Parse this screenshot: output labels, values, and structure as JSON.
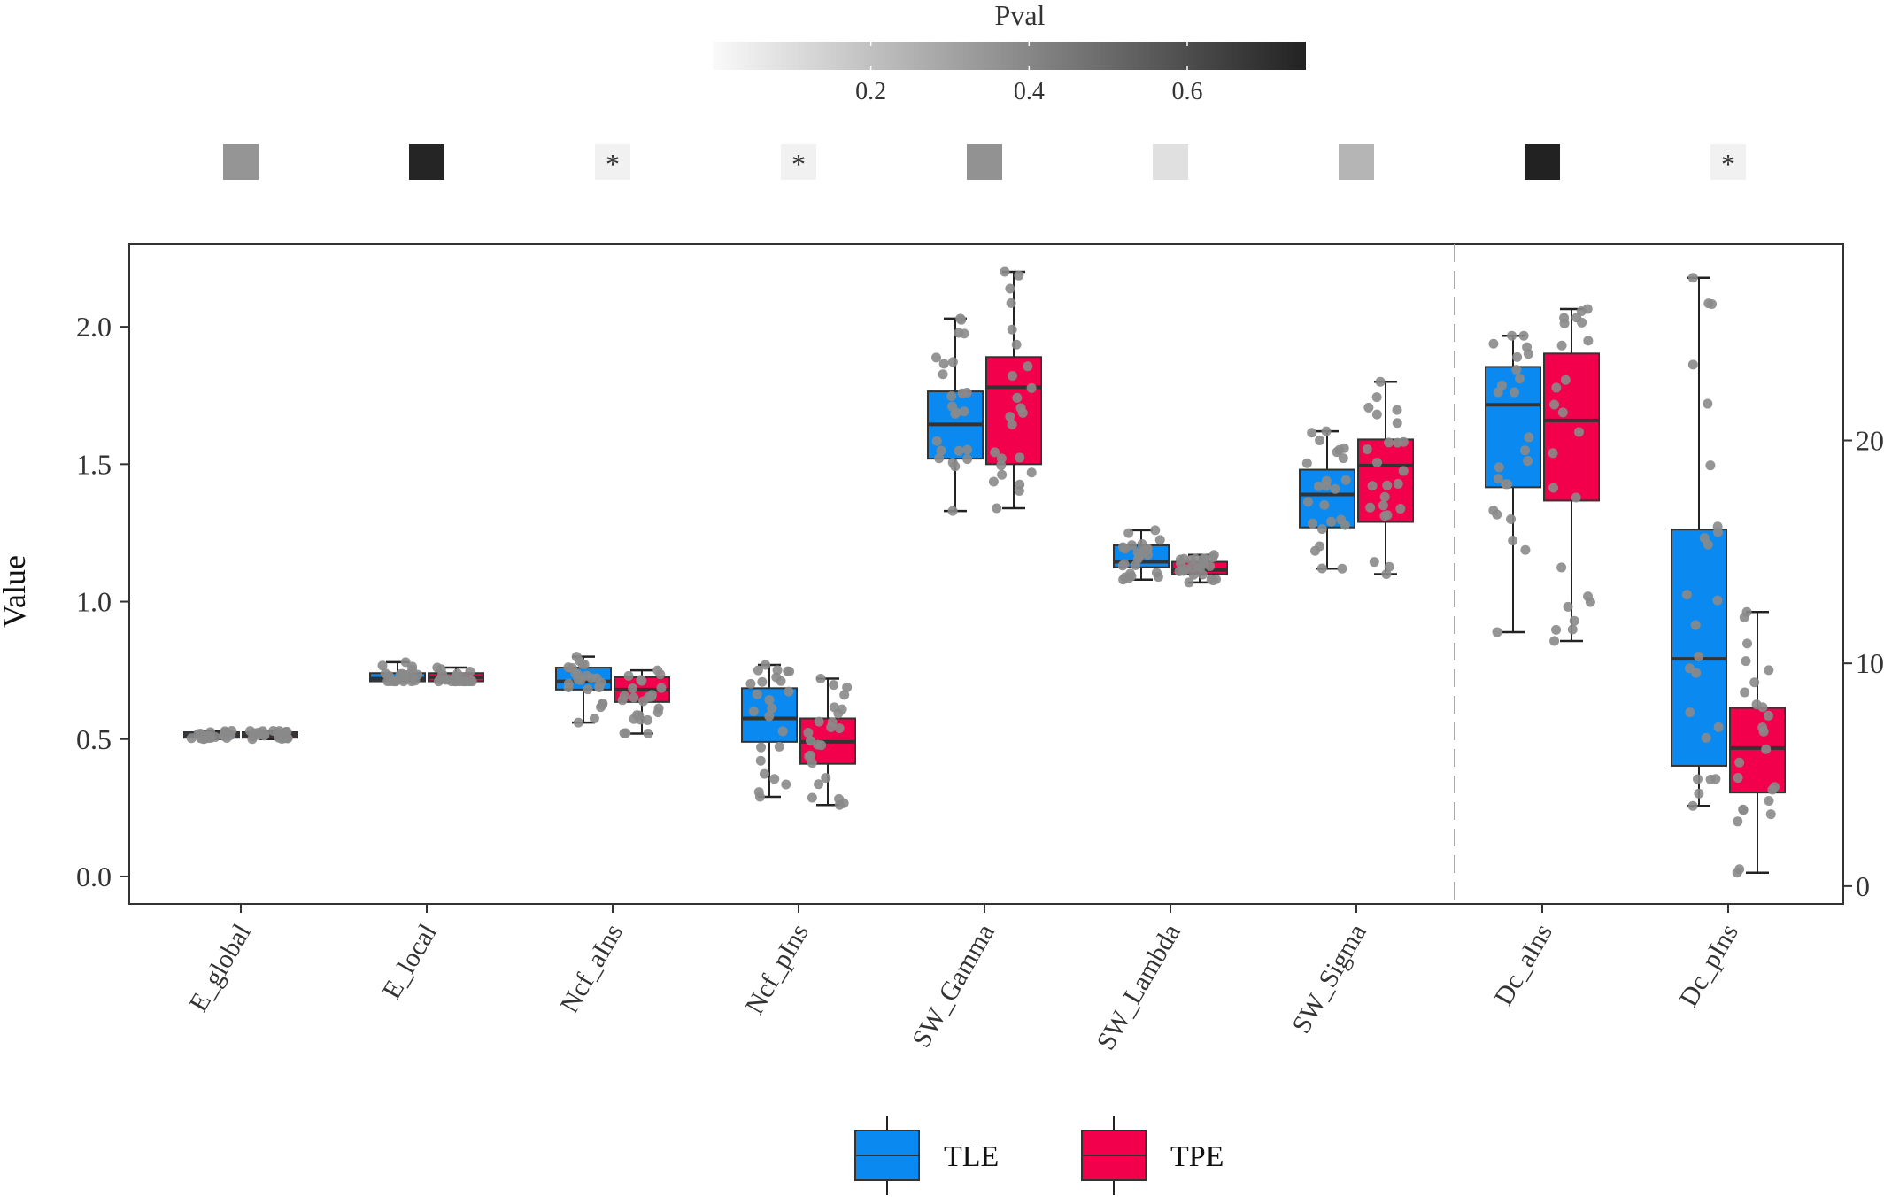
{
  "chart_data": {
    "type": "boxplot",
    "ylabel": "Value",
    "categories": [
      "E_global",
      "E_local",
      "Ncf_aIns",
      "Ncf_pIns",
      "SW_Gamma",
      "SW_Lambda",
      "SW_Sigma",
      "Dc_aIns",
      "Dc_pIns"
    ],
    "left_axis": {
      "ylim": [
        -0.1,
        2.3
      ],
      "ticks": [
        0.0,
        0.5,
        1.0,
        1.5,
        2.0
      ],
      "tick_labels": [
        "0.0",
        "0.5",
        "1.0",
        "1.5",
        "2.0"
      ],
      "applies_to": [
        "E_global",
        "E_local",
        "Ncf_aIns",
        "Ncf_pIns",
        "SW_Gamma",
        "SW_Lambda",
        "SW_Sigma"
      ]
    },
    "right_axis": {
      "ylim": [
        -0.8,
        28.8
      ],
      "ticks": [
        0,
        10,
        20
      ],
      "tick_labels": [
        "0",
        "10",
        "20"
      ],
      "applies_to": [
        "Dc_aIns",
        "Dc_pIns"
      ]
    },
    "legend": {
      "position": "bottom",
      "entries": [
        {
          "name": "TLE",
          "color": "#0a8af0"
        },
        {
          "name": "TPE",
          "color": "#f2004c"
        }
      ]
    },
    "colorbar": {
      "title": "Pval",
      "ticks": [
        0.2,
        0.4,
        0.6
      ],
      "tick_labels": [
        "0.2",
        "0.4",
        "0.6"
      ],
      "range": [
        0.0,
        0.75
      ],
      "color_low": "#fafafa",
      "color_high": "#222222"
    },
    "pvalues": [
      {
        "category": "E_global",
        "pval": 0.35,
        "star": ""
      },
      {
        "category": "E_local",
        "pval": 0.74,
        "star": ""
      },
      {
        "category": "Ncf_aIns",
        "pval": 0.03,
        "star": "*"
      },
      {
        "category": "Ncf_pIns",
        "pval": 0.03,
        "star": "*"
      },
      {
        "category": "SW_Gamma",
        "pval": 0.36,
        "star": ""
      },
      {
        "category": "SW_Lambda",
        "pval": 0.09,
        "star": ""
      },
      {
        "category": "SW_Sigma",
        "pval": 0.24,
        "star": ""
      },
      {
        "category": "Dc_aIns",
        "pval": 0.75,
        "star": ""
      },
      {
        "category": "Dc_pIns",
        "pval": 0.03,
        "star": "*"
      }
    ],
    "series": [
      {
        "name": "TLE",
        "boxes": [
          {
            "min": 0.5,
            "q1": 0.505,
            "median": 0.515,
            "q3": 0.525,
            "max": 0.53
          },
          {
            "min": 0.71,
            "q1": 0.71,
            "median": 0.72,
            "q3": 0.74,
            "max": 0.78
          },
          {
            "min": 0.56,
            "q1": 0.68,
            "median": 0.71,
            "q3": 0.76,
            "max": 0.8
          },
          {
            "min": 0.29,
            "q1": 0.49,
            "median": 0.575,
            "q3": 0.685,
            "max": 0.77
          },
          {
            "min": 1.33,
            "q1": 1.52,
            "median": 1.645,
            "q3": 1.765,
            "max": 2.03
          },
          {
            "min": 1.08,
            "q1": 1.125,
            "median": 1.145,
            "q3": 1.205,
            "max": 1.26
          },
          {
            "min": 1.12,
            "q1": 1.27,
            "median": 1.39,
            "q3": 1.48,
            "max": 1.62
          },
          {
            "min": 11.4,
            "q1": 17.9,
            "median": 21.6,
            "q3": 23.3,
            "max": 24.7
          },
          {
            "min": 3.6,
            "q1": 5.4,
            "median": 10.2,
            "q3": 16.0,
            "max": 27.3
          }
        ]
      },
      {
        "name": "TPE",
        "boxes": [
          {
            "min": 0.5,
            "q1": 0.505,
            "median": 0.515,
            "q3": 0.525,
            "max": 0.53
          },
          {
            "min": 0.71,
            "q1": 0.71,
            "median": 0.725,
            "q3": 0.74,
            "max": 0.76
          },
          {
            "min": 0.52,
            "q1": 0.635,
            "median": 0.68,
            "q3": 0.725,
            "max": 0.75
          },
          {
            "min": 0.26,
            "q1": 0.41,
            "median": 0.49,
            "q3": 0.575,
            "max": 0.72
          },
          {
            "min": 1.34,
            "q1": 1.5,
            "median": 1.78,
            "q3": 1.89,
            "max": 2.2
          },
          {
            "min": 1.07,
            "q1": 1.1,
            "median": 1.115,
            "q3": 1.145,
            "max": 1.17
          },
          {
            "min": 1.1,
            "q1": 1.29,
            "median": 1.495,
            "q3": 1.59,
            "max": 1.8
          },
          {
            "min": 11.0,
            "q1": 17.3,
            "median": 20.9,
            "q3": 23.9,
            "max": 25.9
          },
          {
            "min": 0.6,
            "q1": 4.2,
            "median": 6.2,
            "q3": 8.0,
            "max": 12.3
          }
        ]
      }
    ]
  }
}
